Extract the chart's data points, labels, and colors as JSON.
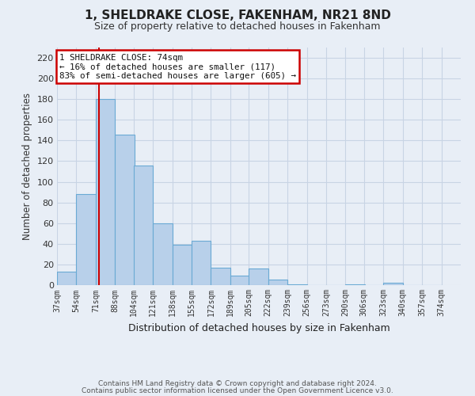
{
  "title": "1, SHELDRAKE CLOSE, FAKENHAM, NR21 8ND",
  "subtitle": "Size of property relative to detached houses in Fakenham",
  "xlabel": "Distribution of detached houses by size in Fakenham",
  "ylabel": "Number of detached properties",
  "bar_values": [
    13,
    88,
    180,
    146,
    116,
    60,
    39,
    43,
    17,
    9,
    16,
    5,
    1,
    0,
    0,
    1,
    0,
    2,
    0,
    0
  ],
  "bin_labels": [
    "37sqm",
    "54sqm",
    "71sqm",
    "88sqm",
    "104sqm",
    "121sqm",
    "138sqm",
    "155sqm",
    "172sqm",
    "189sqm",
    "205sqm",
    "222sqm",
    "239sqm",
    "256sqm",
    "273sqm",
    "290sqm",
    "306sqm",
    "323sqm",
    "340sqm",
    "357sqm",
    "374sqm"
  ],
  "bar_color": "#b8d0ea",
  "bar_edge_color": "#6aaad4",
  "grid_color": "#c8d4e4",
  "bg_color": "#e8eef6",
  "vline_x": 74,
  "vline_color": "#cc0000",
  "annotation_title": "1 SHELDRAKE CLOSE: 74sqm",
  "annotation_line1": "← 16% of detached houses are smaller (117)",
  "annotation_line2": "83% of semi-detached houses are larger (605) →",
  "annotation_box_edgecolor": "#cc0000",
  "ylim": [
    0,
    230
  ],
  "xlim_left": 37,
  "xlim_right": 391,
  "bin_starts": [
    37,
    54,
    71,
    88,
    104,
    121,
    138,
    155,
    172,
    189,
    205,
    222,
    239,
    256,
    273,
    290,
    306,
    323,
    340,
    357
  ],
  "bin_width": 17,
  "footer1": "Contains HM Land Registry data © Crown copyright and database right 2024.",
  "footer2": "Contains public sector information licensed under the Open Government Licence v3.0.",
  "xtick_positions": [
    37,
    54,
    71,
    88,
    104,
    121,
    138,
    155,
    172,
    189,
    205,
    222,
    239,
    256,
    273,
    290,
    306,
    323,
    340,
    357,
    374
  ],
  "yticks": [
    0,
    20,
    40,
    60,
    80,
    100,
    120,
    140,
    160,
    180,
    200,
    220
  ]
}
